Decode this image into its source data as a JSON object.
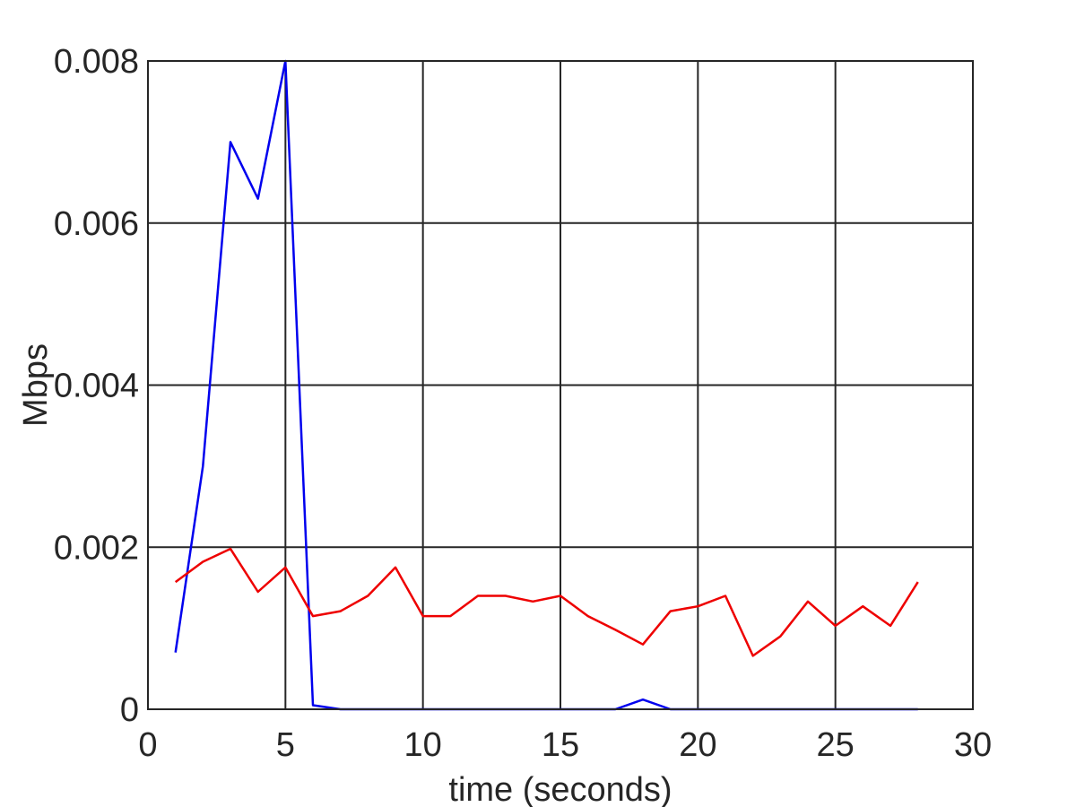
{
  "chart_data": {
    "type": "line",
    "title": "",
    "xlabel": "time (seconds)",
    "ylabel": "Mbps",
    "xlim": [
      0,
      30
    ],
    "ylim": [
      0,
      0.008
    ],
    "grid": true,
    "legend": "none",
    "x_ticks": [
      0,
      5,
      10,
      15,
      20,
      25,
      30
    ],
    "x_tick_labels": [
      "0",
      "5",
      "10",
      "15",
      "20",
      "25",
      "30"
    ],
    "y_ticks": [
      0,
      0.002,
      0.004,
      0.006,
      0.008
    ],
    "y_tick_labels": [
      "0",
      "0.002",
      "0.004",
      "0.006",
      "0.008"
    ],
    "x": [
      1,
      2,
      3,
      4,
      5,
      6,
      7,
      8,
      9,
      10,
      11,
      12,
      13,
      14,
      15,
      16,
      17,
      18,
      19,
      20,
      21,
      22,
      23,
      24,
      25,
      26,
      27,
      28
    ],
    "series": [
      {
        "color": "#0000ee",
        "values": [
          0.0007,
          0.003,
          0.007,
          0.0063,
          0.008,
          5e-05,
          0,
          0,
          0,
          0,
          0,
          0,
          0,
          0,
          0,
          0,
          0,
          0.00012,
          0,
          0,
          0,
          0,
          0,
          0,
          0,
          0,
          0,
          0
        ]
      },
      {
        "color": "#ee0000",
        "values": [
          0.00157,
          0.00182,
          0.00198,
          0.00145,
          0.00175,
          0.00115,
          0.00121,
          0.0014,
          0.00175,
          0.00115,
          0.00115,
          0.0014,
          0.0014,
          0.00133,
          0.0014,
          0.00115,
          0.00098,
          0.0008,
          0.00121,
          0.00127,
          0.0014,
          0.00066,
          0.0009,
          0.00133,
          0.00103,
          0.00127,
          0.00103,
          0.00157
        ]
      }
    ]
  }
}
